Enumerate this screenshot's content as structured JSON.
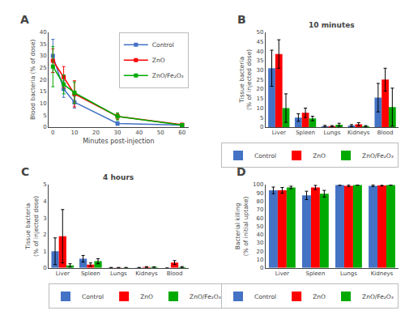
{
  "chart_data": [
    {
      "type": "line",
      "title": "A",
      "xlabel": "Minutes post-injection",
      "ylabel": "Blood bacteria (% of dose)",
      "x": [
        0,
        5,
        10,
        30,
        60
      ],
      "xlim": [
        -2,
        63
      ],
      "xticks": [
        0,
        10,
        20,
        30,
        40,
        50,
        60
      ],
      "ylim": [
        0,
        40
      ],
      "yticks": [
        0,
        5,
        10,
        15,
        20,
        25,
        30,
        35,
        40
      ],
      "marker": "square",
      "grid": false,
      "legend": "upper right",
      "series": [
        {
          "name": "Control",
          "color": "#4472c4",
          "values": [
            30.0,
            16.0,
            10.5,
            1.5,
            0.8
          ],
          "errors": [
            7.0,
            3.5,
            2.5,
            0.8,
            0.3
          ]
        },
        {
          "name": "ZnO",
          "color": "#ff0000",
          "values": [
            28.0,
            21.0,
            14.0,
            4.5,
            1.0
          ],
          "errors": [
            5.0,
            4.5,
            5.5,
            1.2,
            0.4
          ]
        },
        {
          "name": "ZnO/Fe₂O₃",
          "color": "#00aa00",
          "values": [
            25.5,
            18.0,
            14.5,
            4.5,
            0.8
          ],
          "errors": [
            8.5,
            4.0,
            4.5,
            1.5,
            0.3
          ]
        }
      ]
    },
    {
      "type": "bar",
      "title": "B",
      "subtitle": "10 minutes",
      "ylabel": "Tissue bacteria\n(% of injected dose)",
      "categories": [
        "Liver",
        "Spleen",
        "Lungs",
        "Kidneys",
        "Blood"
      ],
      "ylim": [
        0,
        50
      ],
      "yticks": [
        0,
        5,
        10,
        15,
        20,
        25,
        30,
        35,
        40,
        45,
        50
      ],
      "grid": false,
      "legend": "bottom",
      "series": [
        {
          "name": "Control",
          "color": "#4472c4",
          "values": [
            31.0,
            5.0,
            0.5,
            0.8,
            15.5
          ],
          "errors": [
            9.5,
            2.0,
            0.4,
            0.5,
            7.5
          ]
        },
        {
          "name": "ZnO",
          "color": "#ff0000",
          "values": [
            38.5,
            7.5,
            0.5,
            1.5,
            25.0
          ],
          "errors": [
            7.5,
            2.5,
            0.3,
            0.8,
            6.0
          ]
        },
        {
          "name": "ZnO/Fe₂O₃",
          "color": "#00aa00",
          "values": [
            10.0,
            4.5,
            1.2,
            0.5,
            10.5
          ],
          "errors": [
            7.5,
            1.2,
            0.8,
            0.3,
            10.0
          ]
        }
      ]
    },
    {
      "type": "bar",
      "title": "C",
      "subtitle": "4 hours",
      "ylabel": "Tissue bacteria\n(% of injected dose)",
      "categories": [
        "Liver",
        "Spleen",
        "Lungs",
        "Kidneys",
        "Blood"
      ],
      "ylim": [
        0,
        5
      ],
      "yticks": [
        0,
        1,
        2,
        3,
        4,
        5
      ],
      "grid": false,
      "legend": "bottom",
      "series": [
        {
          "name": "Control",
          "color": "#4472c4",
          "values": [
            1.0,
            0.55,
            0.02,
            0.02,
            0.0
          ],
          "errors": [
            0.8,
            0.2,
            0.01,
            0.01,
            0.0
          ]
        },
        {
          "name": "ZnO",
          "color": "#ff0000",
          "values": [
            1.9,
            0.2,
            0.02,
            0.05,
            0.32
          ],
          "errors": [
            1.6,
            0.1,
            0.01,
            0.03,
            0.12
          ]
        },
        {
          "name": "ZnO/Fe₂O₃",
          "color": "#00aa00",
          "values": [
            0.15,
            0.4,
            0.02,
            0.05,
            0.05
          ],
          "errors": [
            0.1,
            0.15,
            0.01,
            0.02,
            0.03
          ]
        }
      ]
    },
    {
      "type": "bar",
      "title": "D",
      "ylabel": "Bacterial killing\n(% of initial uptake)",
      "categories": [
        "Liver",
        "Spleen",
        "Lungs",
        "Kidneys"
      ],
      "ylim": [
        0,
        100
      ],
      "yticks": [
        0,
        10,
        20,
        30,
        40,
        50,
        60,
        70,
        80,
        90,
        100
      ],
      "grid": false,
      "legend": "bottom",
      "series": [
        {
          "name": "Control",
          "color": "#4472c4",
          "values": [
            93.0,
            87.0,
            99.5,
            98.5
          ],
          "errors": [
            4.0,
            5.0,
            0.5,
            1.0
          ]
        },
        {
          "name": "ZnO",
          "color": "#ff0000",
          "values": [
            93.0,
            96.5,
            98.5,
            99.0
          ],
          "errors": [
            3.5,
            2.5,
            1.0,
            0.8
          ]
        },
        {
          "name": "ZnO/Fe₂O₃",
          "color": "#00aa00",
          "values": [
            96.5,
            89.0,
            99.5,
            99.5
          ],
          "errors": [
            1.5,
            4.0,
            0.3,
            0.3
          ]
        }
      ]
    }
  ]
}
